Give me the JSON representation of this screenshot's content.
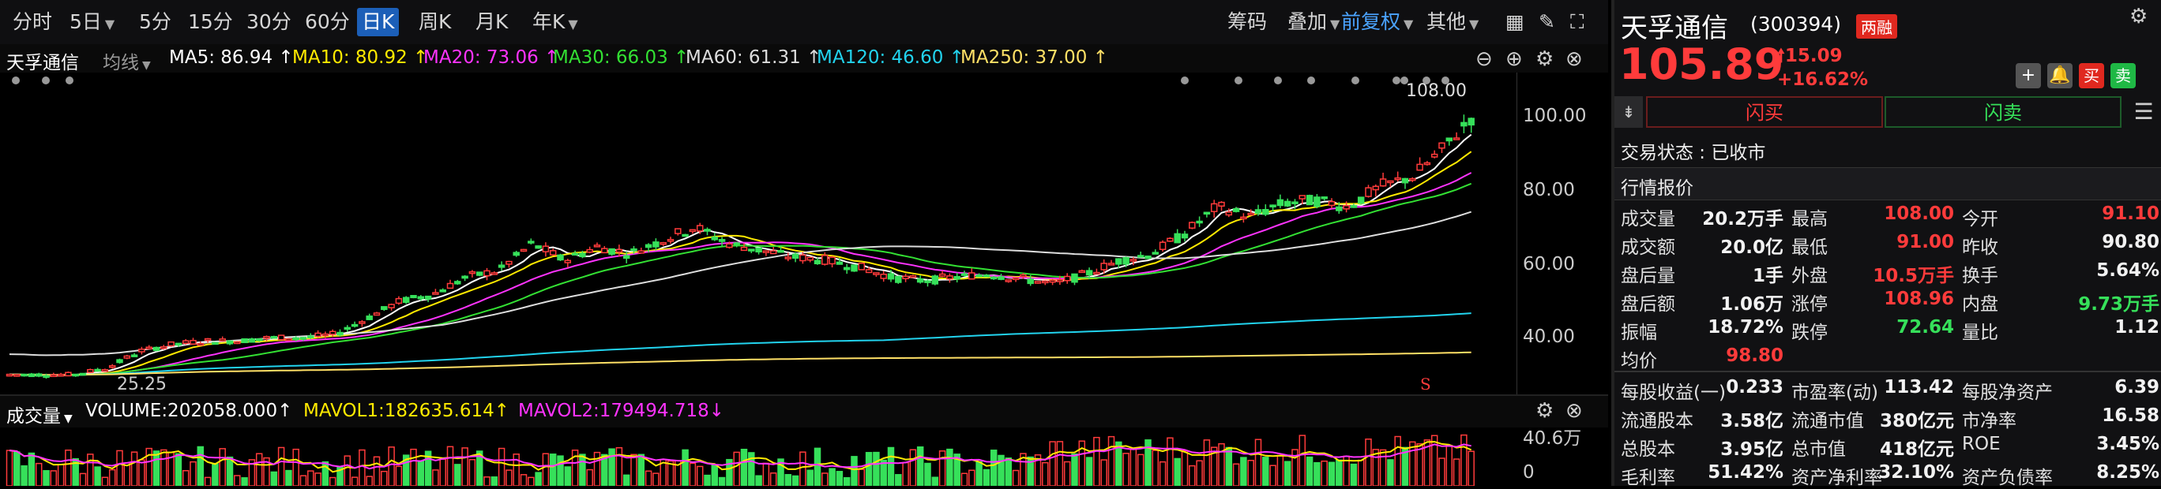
{
  "toolbar": {
    "periods": [
      "分时",
      "5日",
      "5分",
      "15分",
      "30分",
      "60分",
      "日K",
      "周K",
      "月K",
      "年K"
    ],
    "active_period": "日K",
    "right_items": [
      "筹码",
      "叠加",
      "前复权",
      "其他"
    ]
  },
  "ma_legend": {
    "stock_name": "天孚通信",
    "indicator": "均线",
    "items": [
      {
        "text": "MA5: 86.94 ↑",
        "color": "#ffffff"
      },
      {
        "text": "MA10: 80.92 ↑",
        "color": "#ffea00"
      },
      {
        "text": "MA20: 73.06 ↑",
        "color": "#ff33ff"
      },
      {
        "text": "MA30: 66.03 ↑",
        "color": "#33e033"
      },
      {
        "text": "MA60: 61.31 ↑",
        "color": "#dddddd"
      },
      {
        "text": "MA120: 46.60 ↑",
        "color": "#22d3ee"
      },
      {
        "text": "MA250: 37.00 ↑",
        "color": "#ffe066"
      }
    ]
  },
  "chart_data": {
    "type": "candlestick",
    "y_ticks": [
      "100.00",
      "80.00",
      "60.00",
      "40.00"
    ],
    "high_label": "108.00",
    "low_label": "25.25",
    "marker": "S",
    "ylim": [
      22,
      114
    ]
  },
  "volume": {
    "label": "成交量",
    "volume_text": "VOLUME:202058.000↑",
    "mavol1_text": "MAVOL1:182635.614↑",
    "mavol2_text": "MAVOL2:179494.718↓",
    "y_top": "40.6万",
    "y_bottom": "0"
  },
  "quote": {
    "name": "天孚通信",
    "code": "(300394)",
    "badge": "两融",
    "price": "105.89",
    "change": "15.09",
    "change_pct": "+16.62%",
    "flash_buy": "闪买",
    "flash_sell": "闪卖",
    "trade_status": "交易状态 : 已收市",
    "section_title": "行情报价",
    "rows": [
      [
        {
          "l": "成交量",
          "v": "20.2万手",
          "c": "white"
        },
        {
          "l": "最高",
          "v": "108.00",
          "c": "red"
        },
        {
          "l": "今开",
          "v": "91.10",
          "c": "red"
        }
      ],
      [
        {
          "l": "成交额",
          "v": "20.0亿",
          "c": "white"
        },
        {
          "l": "最低",
          "v": "91.00",
          "c": "red"
        },
        {
          "l": "昨收",
          "v": "90.80",
          "c": "white"
        }
      ],
      [
        {
          "l": "盘后量",
          "v": "1手",
          "c": "white"
        },
        {
          "l": "外盘",
          "v": "10.5万手",
          "c": "red"
        },
        {
          "l": "换手",
          "v": "5.64%",
          "c": "white"
        }
      ],
      [
        {
          "l": "盘后额",
          "v": "1.06万",
          "c": "white"
        },
        {
          "l": "涨停",
          "v": "108.96",
          "c": "red"
        },
        {
          "l": "内盘",
          "v": "9.73万手",
          "c": "green"
        }
      ],
      [
        {
          "l": "振幅",
          "v": "18.72%",
          "c": "white"
        },
        {
          "l": "跌停",
          "v": "72.64",
          "c": "green"
        },
        {
          "l": "量比",
          "v": "1.12",
          "c": "white"
        }
      ],
      [
        {
          "l": "均价",
          "v": "98.80",
          "c": "red"
        }
      ]
    ],
    "rows2": [
      [
        {
          "l": "每股收益(一)",
          "v": "0.233",
          "c": "white"
        },
        {
          "l": "市盈率(动)",
          "v": "113.42",
          "c": "white"
        },
        {
          "l": "每股净资产",
          "v": "6.39",
          "c": "white"
        }
      ],
      [
        {
          "l": "流通股本",
          "v": "3.58亿",
          "c": "white"
        },
        {
          "l": "流通市值",
          "v": "380亿元",
          "c": "white"
        },
        {
          "l": "市净率",
          "v": "16.58",
          "c": "white"
        }
      ],
      [
        {
          "l": "总股本",
          "v": "3.95亿",
          "c": "white"
        },
        {
          "l": "总市值",
          "v": "418亿元",
          "c": "white"
        },
        {
          "l": "ROE",
          "v": "3.45%",
          "c": "white"
        }
      ],
      [
        {
          "l": "毛利率",
          "v": "51.42%",
          "c": "white"
        },
        {
          "l": "资产净利率",
          "v": "32.10%",
          "c": "white"
        },
        {
          "l": "资产负债率",
          "v": "8.25%",
          "c": "white"
        }
      ]
    ]
  }
}
